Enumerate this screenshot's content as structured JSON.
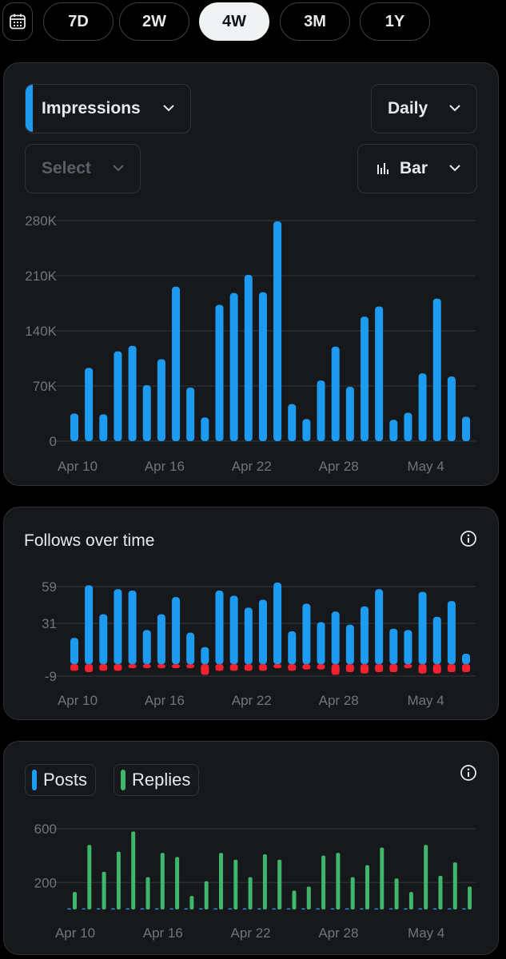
{
  "range_selector": {
    "calendar_icon": "calendar-icon",
    "options": [
      "7D",
      "2W",
      "4W",
      "3M",
      "1Y"
    ],
    "active": "4W"
  },
  "impressions_card": {
    "metric_dropdown": "Impressions",
    "interval_dropdown": "Daily",
    "compare_placeholder": "Select",
    "chart_type_dropdown": "Bar",
    "accent_color": "#1d9bf0"
  },
  "follows_card": {
    "title": "Follows over time",
    "positive_color": "#1d9bf0",
    "negative_color": "#f4212e"
  },
  "posts_card": {
    "legend": [
      {
        "label": "Posts",
        "color": "#1d9bf0"
      },
      {
        "label": "Replies",
        "color": "#3fb66c"
      }
    ]
  },
  "chart_data": [
    {
      "type": "bar",
      "x": [
        "Apr 10",
        "Apr 11",
        "Apr 12",
        "Apr 13",
        "Apr 14",
        "Apr 15",
        "Apr 16",
        "Apr 17",
        "Apr 18",
        "Apr 19",
        "Apr 20",
        "Apr 21",
        "Apr 22",
        "Apr 23",
        "Apr 24",
        "Apr 25",
        "Apr 26",
        "Apr 27",
        "Apr 28",
        "Apr 29",
        "Apr 30",
        "May 1",
        "May 2",
        "May 3",
        "May 4",
        "May 5",
        "May 6",
        "May 7"
      ],
      "xtick_labels": [
        "Apr 10",
        "Apr 16",
        "Apr 22",
        "Apr 28",
        "May 4"
      ],
      "series": [
        {
          "name": "Impressions",
          "values": [
            35000,
            93000,
            34000,
            114000,
            121000,
            71000,
            104000,
            196000,
            68000,
            30000,
            173000,
            188000,
            211000,
            189000,
            279000,
            47000,
            28000,
            77000,
            120000,
            69000,
            158000,
            171000,
            27000,
            36000,
            86000,
            181000,
            82000,
            31000
          ]
        }
      ],
      "yticks": [
        "0",
        "70K",
        "140K",
        "210K",
        "280K"
      ],
      "ylim": [
        0,
        280000
      ],
      "grid": true
    },
    {
      "type": "bar",
      "x": [
        "Apr 10",
        "Apr 11",
        "Apr 12",
        "Apr 13",
        "Apr 14",
        "Apr 15",
        "Apr 16",
        "Apr 17",
        "Apr 18",
        "Apr 19",
        "Apr 20",
        "Apr 21",
        "Apr 22",
        "Apr 23",
        "Apr 24",
        "Apr 25",
        "Apr 26",
        "Apr 27",
        "Apr 28",
        "Apr 29",
        "Apr 30",
        "May 1",
        "May 2",
        "May 3",
        "May 4",
        "May 5",
        "May 6",
        "May 7"
      ],
      "xtick_labels": [
        "Apr 10",
        "Apr 16",
        "Apr 22",
        "Apr 28",
        "May 4"
      ],
      "series": [
        {
          "name": "Follows",
          "values": [
            20,
            60,
            38,
            57,
            56,
            26,
            38,
            51,
            24,
            13,
            56,
            52,
            43,
            49,
            62,
            25,
            46,
            32,
            40,
            30,
            44,
            57,
            27,
            26,
            55,
            36,
            48,
            8
          ]
        },
        {
          "name": "Unfollows",
          "values": [
            -5,
            -6,
            -5,
            -5,
            -3,
            -3,
            -3,
            -3,
            -3,
            -8,
            -5,
            -5,
            -5,
            -5,
            -3,
            -5,
            -4,
            -4,
            -8,
            -6,
            -7,
            -6,
            -6,
            -3,
            -7,
            -7,
            -6,
            -6
          ]
        }
      ],
      "yticks": [
        "-9",
        "31",
        "59"
      ],
      "ylim": [
        -9,
        59
      ],
      "grid": true
    },
    {
      "type": "bar",
      "x": [
        "Apr 10",
        "Apr 11",
        "Apr 12",
        "Apr 13",
        "Apr 14",
        "Apr 15",
        "Apr 16",
        "Apr 17",
        "Apr 18",
        "Apr 19",
        "Apr 20",
        "Apr 21",
        "Apr 22",
        "Apr 23",
        "Apr 24",
        "Apr 25",
        "Apr 26",
        "Apr 27",
        "Apr 28",
        "Apr 29",
        "Apr 30",
        "May 1",
        "May 2",
        "May 3",
        "May 4",
        "May 5",
        "May 6",
        "May 7"
      ],
      "xtick_labels": [
        "Apr 10",
        "Apr 16",
        "Apr 22",
        "Apr 28",
        "May 4"
      ],
      "series": [
        {
          "name": "Posts",
          "values": [
            8,
            8,
            8,
            8,
            8,
            8,
            8,
            8,
            8,
            8,
            8,
            8,
            8,
            8,
            8,
            8,
            8,
            8,
            8,
            8,
            8,
            8,
            8,
            8,
            8,
            8,
            8,
            8
          ]
        },
        {
          "name": "Replies",
          "values": [
            130,
            480,
            280,
            430,
            580,
            240,
            420,
            390,
            100,
            210,
            420,
            370,
            240,
            410,
            370,
            140,
            170,
            400,
            420,
            240,
            330,
            460,
            230,
            130,
            480,
            250,
            350,
            170
          ]
        }
      ],
      "yticks": [
        "200",
        "600"
      ],
      "ylim": [
        0,
        600
      ],
      "grid": true
    }
  ]
}
